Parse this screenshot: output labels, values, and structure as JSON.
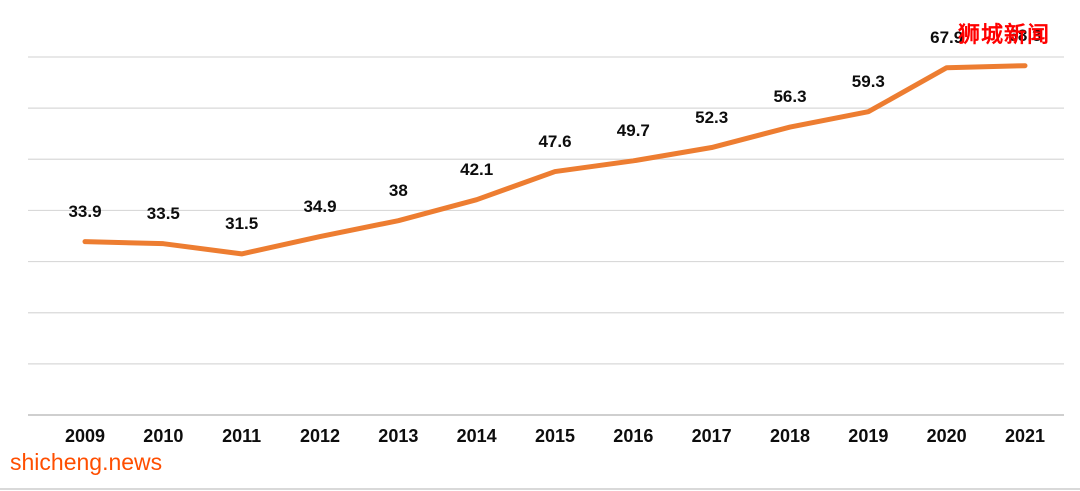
{
  "chart_data": {
    "type": "line",
    "categories": [
      "2009",
      "2010",
      "2011",
      "2012",
      "2013",
      "2014",
      "2015",
      "2016",
      "2017",
      "2018",
      "2019",
      "2020",
      "2021"
    ],
    "values": [
      33.9,
      33.5,
      31.5,
      34.9,
      38,
      42.1,
      47.6,
      49.7,
      52.3,
      56.3,
      59.3,
      67.9,
      68.3
    ],
    "labels": [
      "33.9",
      "33.5",
      "31.5",
      "34.9",
      "38",
      "42.1",
      "47.6",
      "49.7",
      "52.3",
      "56.3",
      "59.3",
      "67.9",
      "68.3"
    ],
    "title": "",
    "xlabel": "",
    "ylabel": "",
    "ylim": [
      0,
      70
    ],
    "gridline_step": 10,
    "grid": true,
    "legend": "none",
    "line_color": "#ED7D31"
  },
  "colors": {
    "line": "#ED7D31",
    "grid": "#D9D9D9",
    "axis": "#BFBFBF",
    "label": "#0d0d0d",
    "watermark_red": "#FF0000",
    "watermark_orange": "#FF4E00"
  },
  "watermarks": {
    "top_right": "狮城新闻",
    "bottom_left": "shicheng.news"
  }
}
